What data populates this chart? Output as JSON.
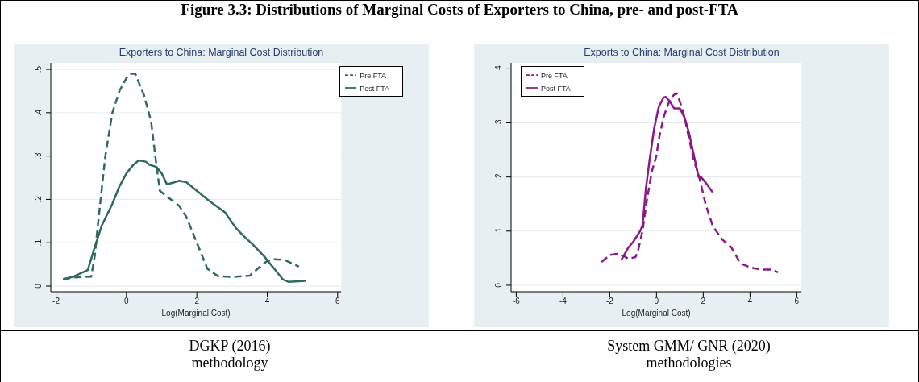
{
  "chart_data": [
    {
      "type": "other",
      "title": "Figure 3.3: Distributions of Marginal Costs of Exporters to China, pre- and post-FTA"
    },
    {
      "type": "line",
      "title": "Exporters to China: Marginal Cost Distribution",
      "xlabel": "Log(Marginal Cost)",
      "annotations": [
        "DGKP (2016)",
        "methodology"
      ],
      "xlim": [
        -2.15,
        6.1
      ],
      "xticks": [
        -2,
        0,
        2,
        4,
        6
      ],
      "ylim": [
        -0.013,
        0.515
      ],
      "yticks": [
        {
          "value": 0,
          "label": "0"
        },
        {
          "value": 0.1,
          "label": ".1"
        },
        {
          "value": 0.2,
          "label": ".2"
        },
        {
          "value": 0.3,
          "label": ".3"
        },
        {
          "value": 0.4,
          "label": ".4"
        },
        {
          "value": 0.5,
          "label": ".5"
        }
      ],
      "grid": "y",
      "legend": "top right",
      "marker": "none",
      "series": [
        {
          "name": "Pre FTA",
          "color": "#2e6b5e",
          "line_style": "dashed",
          "x": [
            -1.8,
            -1.5,
            -1.0,
            -0.9,
            -0.8,
            -0.6,
            -0.4,
            -0.2,
            0,
            0.1,
            0.25,
            0.5,
            0.7,
            0.85,
            0.95,
            1.1,
            1.5,
            1.7,
            2.0,
            2.3,
            2.6,
            3.0,
            3.5,
            3.8,
            4.0,
            4.2,
            4.5,
            4.9
          ],
          "values": [
            0.016,
            0.02,
            0.022,
            0.07,
            0.15,
            0.3,
            0.4,
            0.45,
            0.48,
            0.49,
            0.49,
            0.44,
            0.38,
            0.28,
            0.22,
            0.21,
            0.185,
            0.16,
            0.1,
            0.04,
            0.023,
            0.021,
            0.024,
            0.045,
            0.058,
            0.062,
            0.06,
            0.045
          ]
        },
        {
          "name": "Post FTA",
          "color": "#2e6b5e",
          "line_style": "solid",
          "x": [
            -1.8,
            -1.5,
            -1.1,
            -0.9,
            -0.7,
            -0.4,
            -0.2,
            0,
            0.2,
            0.35,
            0.55,
            0.65,
            0.85,
            1.0,
            1.15,
            1.3,
            1.5,
            1.7,
            2.0,
            2.3,
            2.5,
            2.8,
            3.1,
            3.3,
            3.6,
            3.9,
            4.2,
            4.45,
            4.6,
            5.1
          ],
          "values": [
            0.016,
            0.022,
            0.037,
            0.09,
            0.14,
            0.19,
            0.23,
            0.26,
            0.28,
            0.29,
            0.287,
            0.28,
            0.275,
            0.26,
            0.235,
            0.238,
            0.243,
            0.24,
            0.22,
            0.2,
            0.188,
            0.17,
            0.135,
            0.118,
            0.095,
            0.07,
            0.04,
            0.015,
            0.01,
            0.012
          ]
        }
      ]
    },
    {
      "type": "line",
      "title": "Exports to China: Marginal Cost Distribution",
      "xlabel": "Log(Marginal Cost)",
      "annotations": [
        "System GMM/ GNR (2020)",
        "methodologies"
      ],
      "xlim": [
        -6.22,
        6.2
      ],
      "xticks": [
        -6,
        -4,
        -2,
        0,
        2,
        4,
        6
      ],
      "ylim": [
        -0.012,
        0.411
      ],
      "yticks": [
        {
          "value": 0,
          "label": "0"
        },
        {
          "value": 0.1,
          "label": ".1"
        },
        {
          "value": 0.2,
          "label": ".2"
        },
        {
          "value": 0.3,
          "label": ".3"
        },
        {
          "value": 0.4,
          "label": ".4"
        }
      ],
      "grid": "y",
      "legend": "top left",
      "marker": "none",
      "series": [
        {
          "name": "Pre FTA",
          "color": "#8b1a89",
          "line_style": "dashed",
          "x": [
            -2.35,
            -2.0,
            -1.7,
            -1.4,
            -1.2,
            -0.9,
            -0.8,
            -0.6,
            -0.4,
            -0.2,
            0,
            0.1,
            0.3,
            0.5,
            0.7,
            0.85,
            1.0,
            1.2,
            1.4,
            1.6,
            1.8,
            2.1,
            2.4,
            2.8,
            3.2,
            3.6,
            3.9,
            4.2,
            4.5,
            4.9,
            5.2
          ],
          "values": [
            0.043,
            0.056,
            0.058,
            0.054,
            0.049,
            0.052,
            0.062,
            0.1,
            0.16,
            0.21,
            0.24,
            0.27,
            0.31,
            0.335,
            0.35,
            0.355,
            0.34,
            0.31,
            0.27,
            0.23,
            0.205,
            0.15,
            0.11,
            0.085,
            0.07,
            0.04,
            0.035,
            0.031,
            0.029,
            0.029,
            0.024
          ]
        },
        {
          "name": "Post FTA",
          "color": "#8b1a89",
          "line_style": "solid",
          "x": [
            -1.5,
            -1.2,
            -1.0,
            -0.7,
            -0.6,
            -0.45,
            -0.3,
            -0.1,
            0.1,
            0.3,
            0.4,
            0.6,
            0.75,
            1.0,
            1.2,
            1.4,
            1.6,
            1.8,
            1.9,
            2.1,
            2.4
          ],
          "values": [
            0.047,
            0.07,
            0.08,
            0.1,
            0.11,
            0.18,
            0.23,
            0.29,
            0.33,
            0.347,
            0.348,
            0.338,
            0.327,
            0.327,
            0.31,
            0.28,
            0.24,
            0.2,
            0.2,
            0.19,
            0.172
          ]
        }
      ]
    }
  ]
}
